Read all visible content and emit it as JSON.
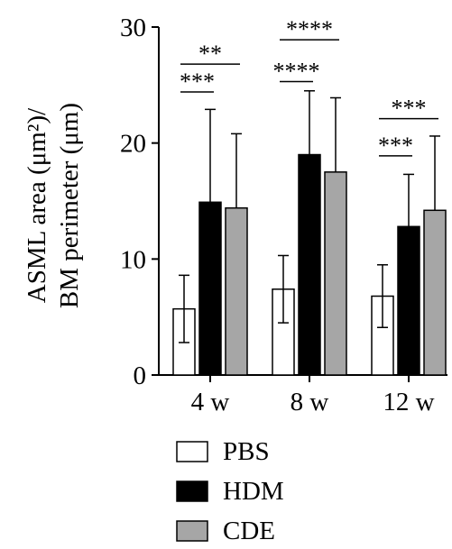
{
  "chart_data": {
    "type": "bar",
    "ylabel_line1": "ASML area (μm²)/",
    "ylabel_line2": "BM perimeter (μm)",
    "ylim": [
      0,
      30
    ],
    "yticks": [
      "0",
      "10",
      "20",
      "30"
    ],
    "categories": [
      "4 w",
      "8 w",
      "12 w"
    ],
    "series": [
      {
        "name": "PBS",
        "color": "#ffffff",
        "values": [
          5.7,
          7.4,
          6.8
        ],
        "errors": [
          2.9,
          2.9,
          2.7
        ]
      },
      {
        "name": "HDM",
        "color": "#000000",
        "values": [
          14.9,
          19.0,
          12.8
        ],
        "errors": [
          8.0,
          5.5,
          4.5
        ]
      },
      {
        "name": "CDE",
        "color": "#a6a6a6",
        "values": [
          14.4,
          17.5,
          14.2
        ],
        "errors": [
          6.4,
          6.4,
          6.4
        ]
      }
    ],
    "significance": [
      {
        "group": 0,
        "from": 0,
        "to": 1,
        "label": "***",
        "y": 24.4
      },
      {
        "group": 0,
        "from": 0,
        "to": 2,
        "label": "**",
        "y": 26.8
      },
      {
        "group": 1,
        "from": 0,
        "to": 1,
        "label": "****",
        "y": 25.3
      },
      {
        "group": 1,
        "from": 0,
        "to": 2,
        "label": "****",
        "y": 28.9
      },
      {
        "group": 2,
        "from": 0,
        "to": 1,
        "label": "***",
        "y": 18.9
      },
      {
        "group": 2,
        "from": 0,
        "to": 2,
        "label": "***",
        "y": 22.1
      }
    ],
    "legend_position": "bottom"
  }
}
